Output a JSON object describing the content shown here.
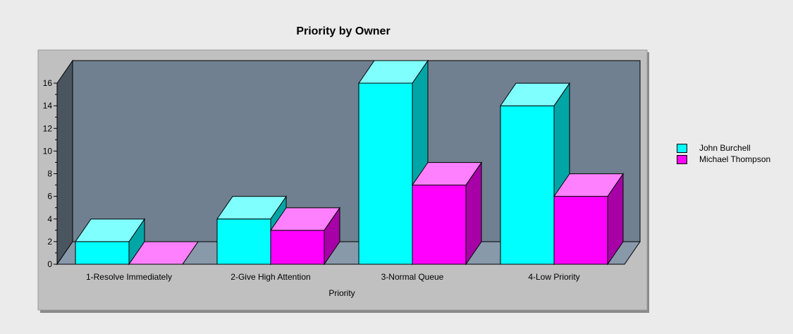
{
  "chart_data": {
    "type": "bar",
    "title": "Priority by Owner",
    "xlabel": "Priority",
    "ylabel": "",
    "categories": [
      "1-Resolve Immediately",
      "2-Give High Attention",
      "3-Normal Queue",
      "4-Low Priority"
    ],
    "series": [
      {
        "name": "John Burchell",
        "values": [
          2,
          4,
          16,
          14
        ],
        "color": "#00ffff"
      },
      {
        "name": "Michael Thompson",
        "values": [
          0,
          3,
          7,
          6
        ],
        "color": "#ff00ff"
      }
    ],
    "ylim": [
      0,
      16
    ],
    "yticks": [
      "0",
      "2",
      "4",
      "6",
      "8",
      "10",
      "12",
      "14",
      "16"
    ],
    "grid": false,
    "legend_position": "right",
    "style": "3d",
    "colors": {
      "plot_back_wall": "#708090",
      "plot_floor": "#8899aa",
      "plot_left_wall": "#4a5560",
      "chart_frame": "#c0c0c0",
      "page_background": "#ebebeb"
    }
  }
}
